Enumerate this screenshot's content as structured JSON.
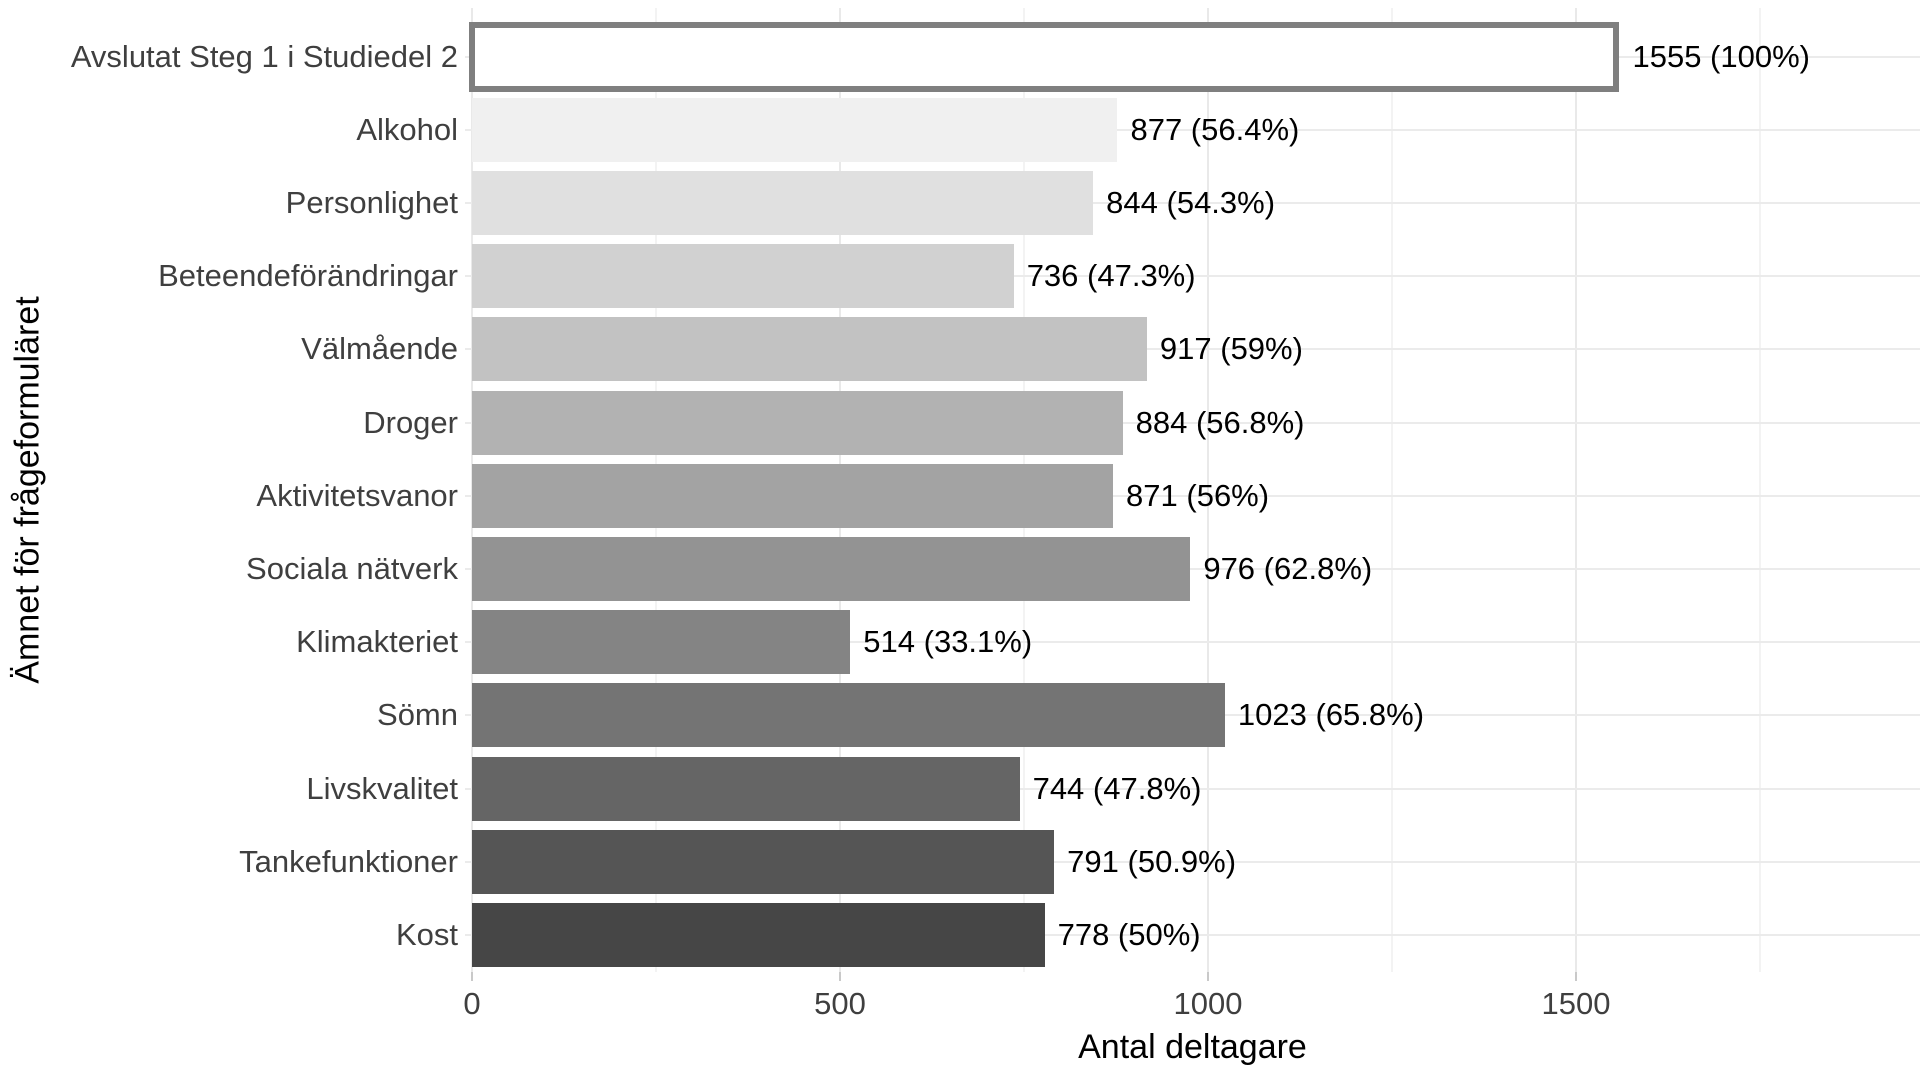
{
  "chart_data": {
    "type": "bar",
    "orientation": "horizontal",
    "title": "",
    "xlabel": "Antal deltagare",
    "ylabel": "Ämnet för frågeformuläret",
    "categories": [
      "Avslutat Steg 1 i Studiedel 2",
      "Alkohol",
      "Personlighet",
      "Beteendeförändringar",
      "Välmående",
      "Droger",
      "Aktivitetsvanor",
      "Sociala nätverk",
      "Klimakteriet",
      "Sömn",
      "Livskvalitet",
      "Tankefunktioner",
      "Kost"
    ],
    "values": [
      1555,
      877,
      844,
      736,
      917,
      884,
      871,
      976,
      514,
      1023,
      744,
      791,
      778
    ],
    "bar_labels": [
      "1555 (100%)",
      "877 (56.4%)",
      "844 (54.3%)",
      "736 (47.3%)",
      "917 (59%)",
      "884 (56.8%)",
      "871 (56%)",
      "976 (62.8%)",
      "514 (33.1%)",
      "1023 (65.8%)",
      "744 (47.8%)",
      "791 (50.9%)",
      "778 (50%)"
    ],
    "x_ticks": [
      0,
      500,
      1000,
      1500
    ],
    "x_tick_labels": [
      "0",
      "500",
      "1000",
      "1500"
    ],
    "x_minor_gridlines": [
      250,
      750,
      1250,
      1750
    ],
    "xlim": [
      0,
      1960
    ],
    "grid": true,
    "legend": "none",
    "bar_colors": [
      "#ffffff",
      "#f0f0f0",
      "#e0e0e0",
      "#d1d1d1",
      "#c2c2c2",
      "#b2b2b2",
      "#a3a3a3",
      "#939393",
      "#848484",
      "#747474",
      "#656565",
      "#555555",
      "#464646"
    ],
    "highlight_bar": {
      "index": 0,
      "fill": "#ffffff",
      "border_color": "#7f7f7f",
      "border_px": 6
    },
    "value_label_color": "#000000",
    "axis_text_color": "#3f3f3f",
    "gridline_color": "#ebebeb",
    "background": "#ffffff"
  }
}
